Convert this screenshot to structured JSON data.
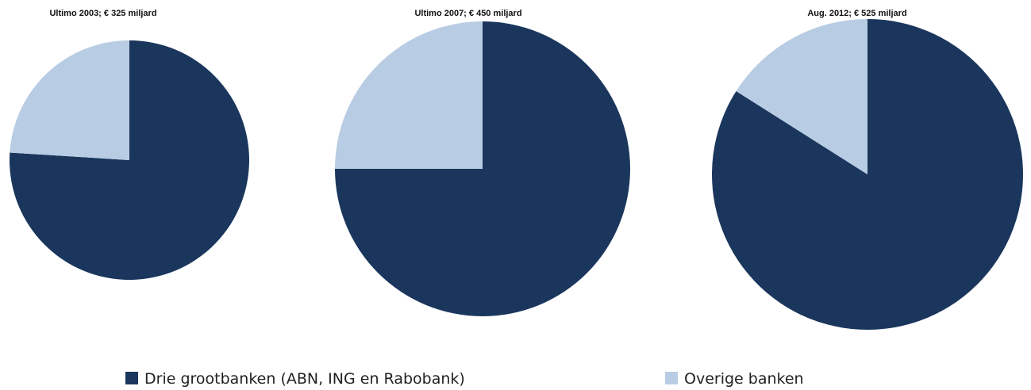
{
  "chart_data": [
    {
      "type": "pie",
      "title": "Ultimo 2003; € 325 miljard",
      "categories": [
        "Drie grootbanken (ABN, ING en Rabobank)",
        "Overige banken"
      ],
      "values": [
        76,
        24
      ],
      "colors": [
        "#1a365d",
        "#b8cce4"
      ]
    },
    {
      "type": "pie",
      "title": "Ultimo 2007; € 450 miljard",
      "categories": [
        "Drie grootbanken (ABN, ING en Rabobank)",
        "Overige banken"
      ],
      "values": [
        75,
        25
      ],
      "colors": [
        "#1a365d",
        "#b8cce4"
      ]
    },
    {
      "type": "pie",
      "title": "Aug. 2012; € 525 miljard",
      "categories": [
        "Drie grootbanken (ABN, ING en Rabobank)",
        "Overige banken"
      ],
      "values": [
        84,
        16
      ],
      "colors": [
        "#1a365d",
        "#b8cce4"
      ]
    }
  ]
}
